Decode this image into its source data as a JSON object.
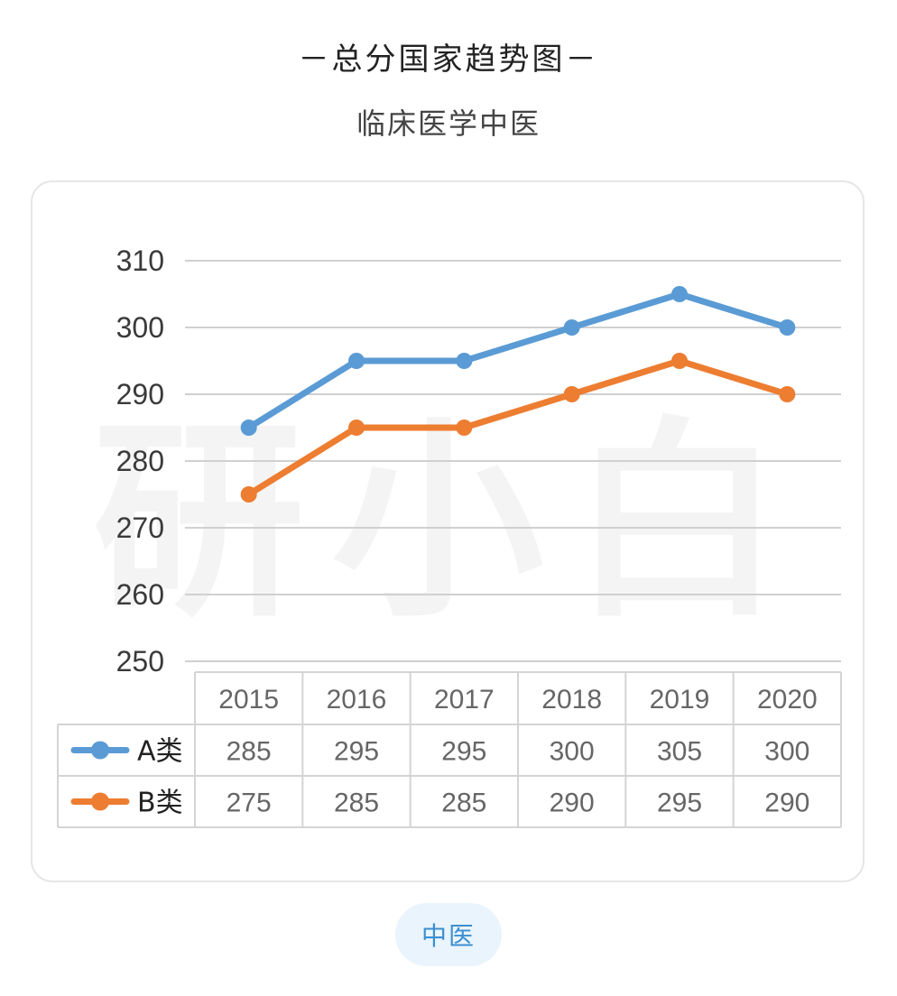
{
  "header": {
    "title": "－总分国家趋势图－",
    "subtitle": "临床医学中医"
  },
  "watermark": "研小白",
  "tab": {
    "label": "中医"
  },
  "colors": {
    "series_a": "#5b9bd5",
    "series_b": "#ed7d31",
    "grid": "#d0d0d0",
    "table_border": "#d4d4d4",
    "pill_bg": "#eaf4fc",
    "pill_text": "#3b8fd0"
  },
  "chart_data": {
    "type": "line",
    "categories": [
      "2015",
      "2016",
      "2017",
      "2018",
      "2019",
      "2020"
    ],
    "series": [
      {
        "name": "A类",
        "values": [
          285,
          295,
          295,
          300,
          305,
          300
        ]
      },
      {
        "name": "B类",
        "values": [
          275,
          285,
          285,
          290,
          295,
          290
        ]
      }
    ],
    "yticks": [
      "250",
      "260",
      "270",
      "280",
      "290",
      "300",
      "310"
    ],
    "ylim": [
      250,
      310
    ],
    "grid": true,
    "legend": "data-table"
  }
}
